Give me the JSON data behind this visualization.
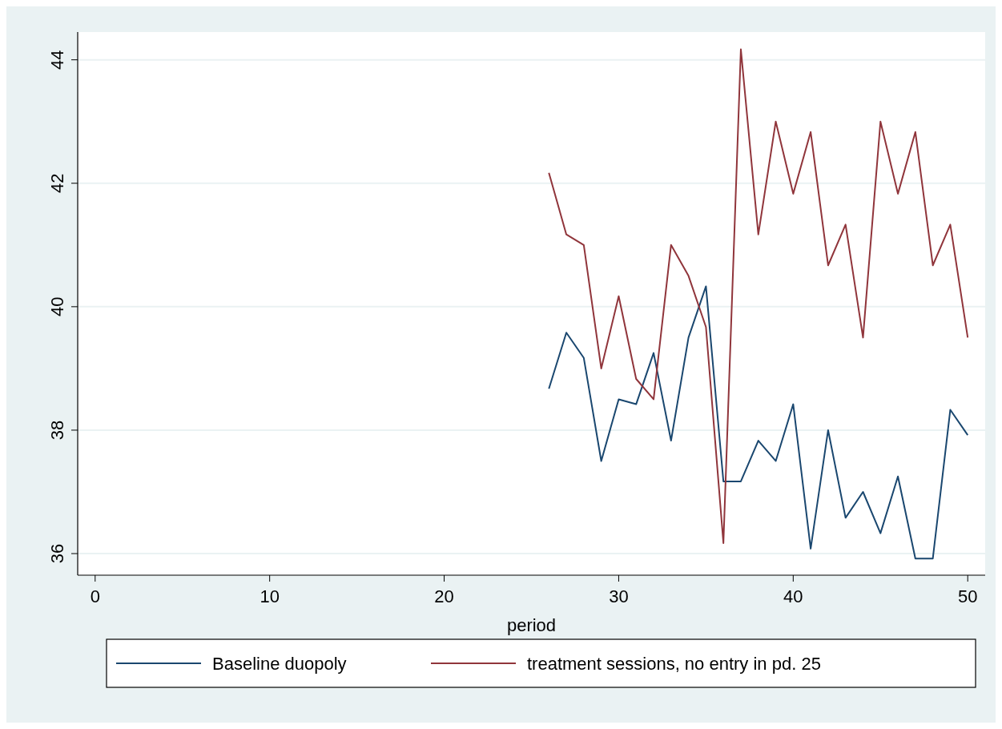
{
  "chart_data": {
    "type": "line",
    "xlabel": "period",
    "x": [
      26,
      27,
      28,
      29,
      30,
      31,
      32,
      33,
      34,
      35,
      36,
      37,
      38,
      39,
      40,
      41,
      42,
      43,
      44,
      45,
      46,
      47,
      48,
      49,
      50
    ],
    "series": [
      {
        "name": "Baseline duopoly",
        "color": "#1a476f",
        "values": [
          38.67,
          39.58,
          39.17,
          37.5,
          38.5,
          38.42,
          39.25,
          37.83,
          39.5,
          40.33,
          37.17,
          37.17,
          37.83,
          37.5,
          38.42,
          36.08,
          38.0,
          36.58,
          37.0,
          36.33,
          37.25,
          35.92,
          35.92,
          38.33,
          37.92
        ]
      },
      {
        "name": "treatment sessions, no entry in pd. 25",
        "color": "#90353b",
        "values": [
          42.17,
          41.17,
          41.0,
          39.0,
          40.17,
          38.83,
          38.5,
          41.0,
          40.5,
          39.67,
          36.17,
          44.17,
          41.17,
          43.0,
          41.83,
          42.83,
          40.67,
          41.33,
          39.5,
          43.0,
          41.83,
          42.83,
          40.67,
          41.33,
          39.5
        ]
      }
    ],
    "xlim": [
      -1,
      51
    ],
    "xticks": [
      0,
      10,
      20,
      30,
      40,
      50
    ],
    "ylim": [
      35.65,
      44.45
    ],
    "yticks": [
      36,
      38,
      40,
      42,
      44
    ],
    "grid": "y",
    "legend": "bottom"
  }
}
